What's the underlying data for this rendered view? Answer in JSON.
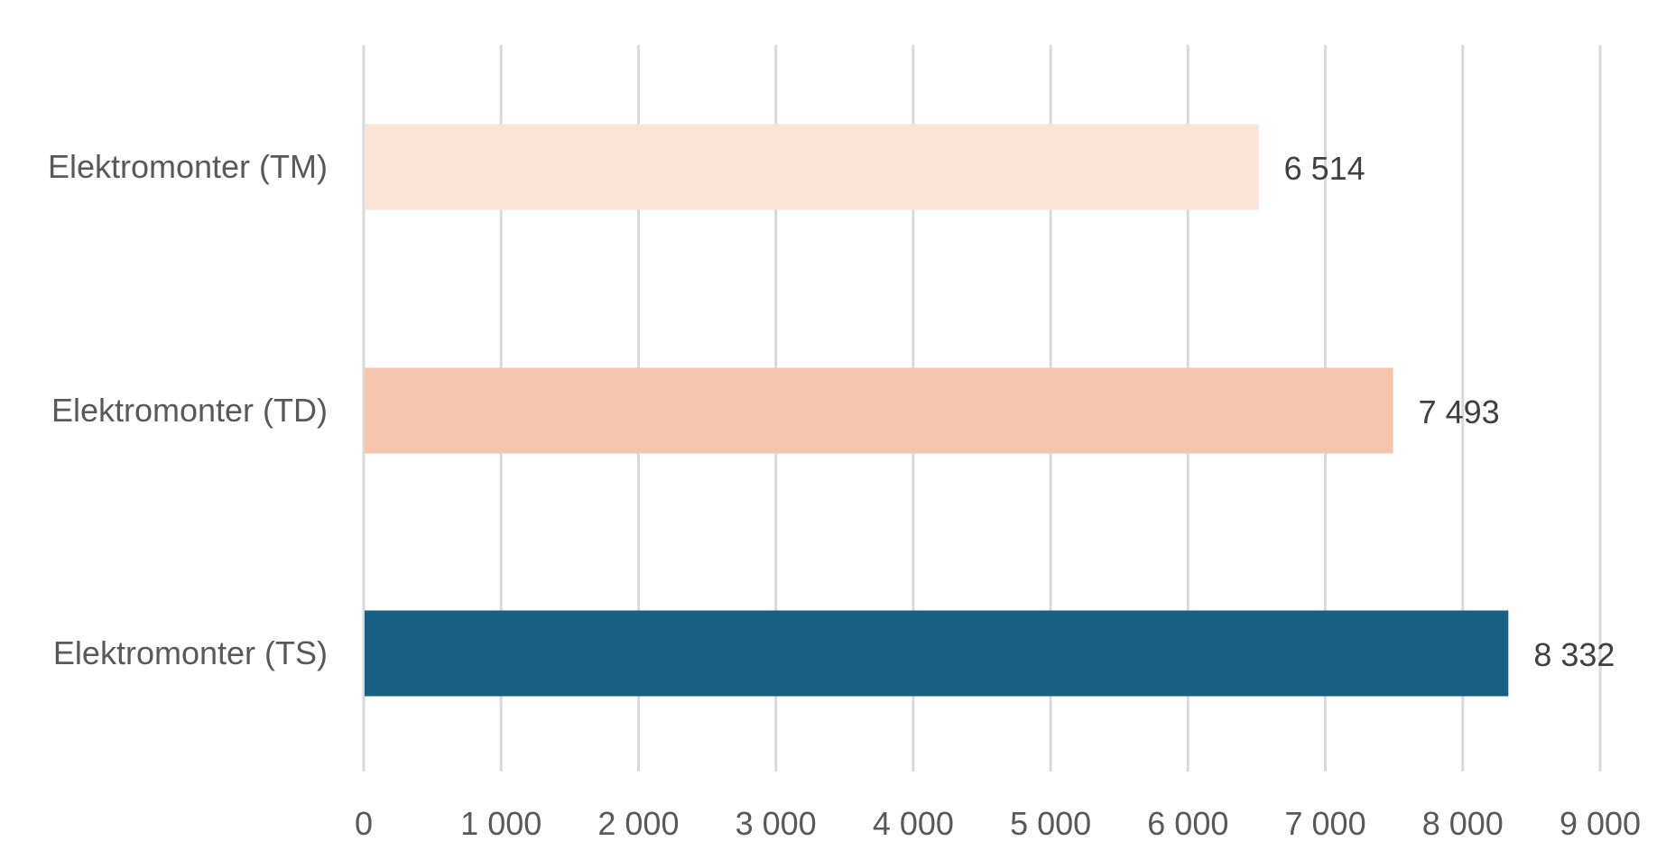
{
  "chart_data": {
    "type": "bar",
    "orientation": "horizontal",
    "categories": [
      "Elektromonter (TM)",
      "Elektromonter (TD)",
      "Elektromonter (TS)"
    ],
    "values": [
      6514,
      7493,
      8332
    ],
    "value_labels": [
      "6 514",
      "7 493",
      "8 332"
    ],
    "colors": [
      "#fbe3d7",
      "#f5c6ad",
      "#176083"
    ],
    "xlim": [
      0,
      9000
    ],
    "x_ticks": [
      0,
      1000,
      2000,
      3000,
      4000,
      5000,
      6000,
      7000,
      8000,
      9000
    ],
    "x_tick_labels": [
      "0",
      "1 000",
      "2 000",
      "3 000",
      "4 000",
      "5 000",
      "6 000",
      "7 000",
      "8 000",
      "9 000"
    ],
    "grid": true,
    "title": "",
    "xlabel": "",
    "ylabel": ""
  }
}
